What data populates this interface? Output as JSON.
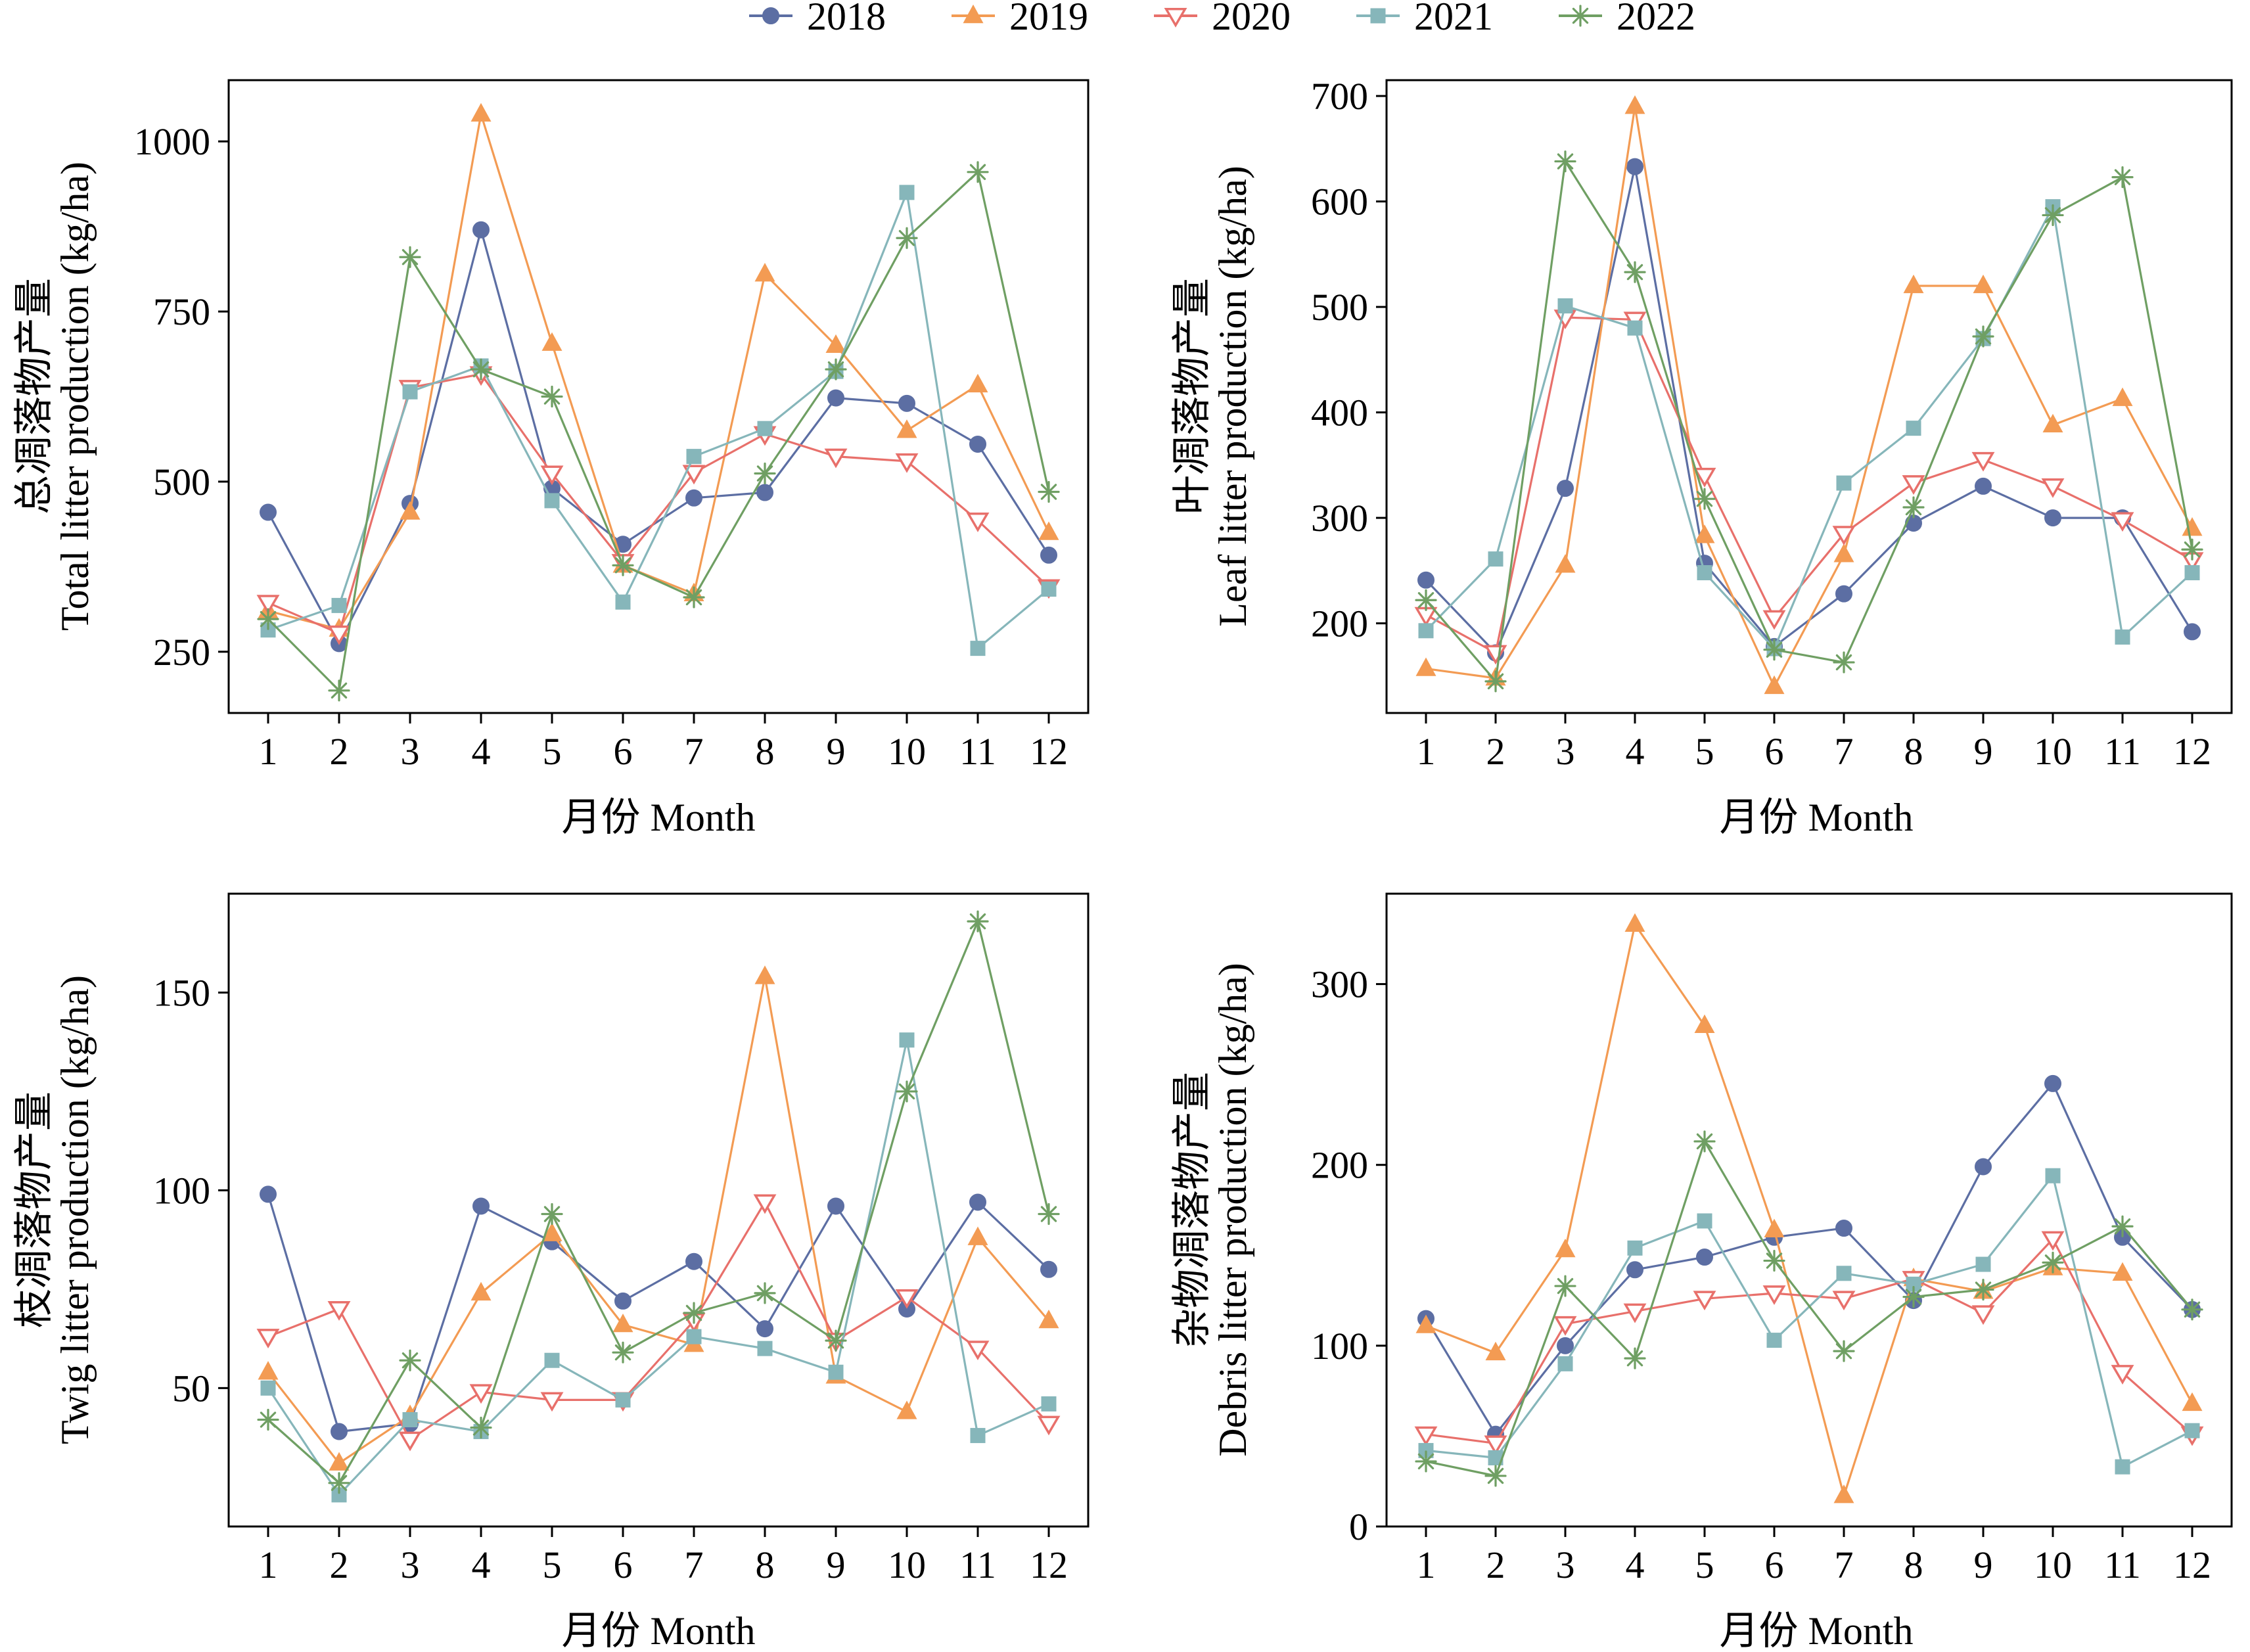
{
  "legend": [
    {
      "name": "2018",
      "color": "#5C6EA3",
      "marker": "circle"
    },
    {
      "name": "2019",
      "color": "#F39B53",
      "marker": "triangle-up"
    },
    {
      "name": "2020",
      "color": "#E8706B",
      "marker": "triangle-down-open"
    },
    {
      "name": "2021",
      "color": "#86B6BA",
      "marker": "square"
    },
    {
      "name": "2022",
      "color": "#6F9F63",
      "marker": "star"
    }
  ],
  "chart_data": [
    {
      "type": "line",
      "panel": "top-left",
      "xlabel": "月份 Month",
      "ylabel": [
        "总凋落物产量",
        "Total litter production (kg/ha)"
      ],
      "x": [
        1,
        2,
        3,
        4,
        5,
        6,
        7,
        8,
        9,
        10,
        11,
        12
      ],
      "xticks": [
        1,
        2,
        3,
        4,
        5,
        6,
        7,
        8,
        9,
        10,
        11,
        12
      ],
      "ylim": [
        160,
        1090
      ],
      "yticks": [
        250,
        500,
        750,
        1000
      ],
      "grid": false,
      "series": [
        {
          "name": "2018",
          "values": [
            455,
            262,
            468,
            870,
            490,
            408,
            476,
            484,
            623,
            615,
            555,
            392
          ]
        },
        {
          "name": "2019",
          "values": [
            310,
            283,
            455,
            1040,
            703,
            377,
            335,
            805,
            700,
            575,
            642,
            425
          ]
        },
        {
          "name": "2020",
          "values": [
            322,
            277,
            638,
            658,
            512,
            382,
            513,
            570,
            537,
            530,
            443,
            345
          ]
        },
        {
          "name": "2021",
          "values": [
            282,
            318,
            632,
            670,
            472,
            323,
            537,
            578,
            662,
            925,
            255,
            342
          ]
        },
        {
          "name": "2022",
          "values": [
            298,
            193,
            830,
            665,
            625,
            377,
            330,
            512,
            665,
            858,
            955,
            485
          ]
        }
      ]
    },
    {
      "type": "line",
      "panel": "top-right",
      "xlabel": "月份 Month",
      "ylabel": [
        "叶凋落物产量",
        "Leaf litter production (kg/ha)"
      ],
      "x": [
        1,
        2,
        3,
        4,
        5,
        6,
        7,
        8,
        9,
        10,
        11,
        12
      ],
      "xticks": [
        1,
        2,
        3,
        4,
        5,
        6,
        7,
        8,
        9,
        10,
        11,
        12
      ],
      "ylim": [
        115,
        715
      ],
      "yticks": [
        200,
        300,
        400,
        500,
        600,
        700
      ],
      "grid": false,
      "series": [
        {
          "name": "2018",
          "values": [
            241,
            172,
            328,
            633,
            257,
            178,
            228,
            295,
            330,
            300,
            300,
            192
          ]
        },
        {
          "name": "2019",
          "values": [
            157,
            148,
            255,
            690,
            283,
            140,
            265,
            520,
            520,
            388,
            413,
            290
          ]
        },
        {
          "name": "2020",
          "values": [
            208,
            172,
            490,
            488,
            340,
            205,
            285,
            333,
            355,
            330,
            298,
            260
          ]
        },
        {
          "name": "2021",
          "values": [
            193,
            261,
            501,
            480,
            248,
            176,
            333,
            385,
            470,
            595,
            187,
            248
          ]
        },
        {
          "name": "2022",
          "values": [
            222,
            145,
            638,
            533,
            318,
            175,
            163,
            310,
            472,
            587,
            623,
            270
          ]
        }
      ]
    },
    {
      "type": "line",
      "panel": "bottom-left",
      "xlabel": "月份 Month",
      "ylabel": [
        "枝凋落物产量",
        "Twig litter production (kg/ha)"
      ],
      "x": [
        1,
        2,
        3,
        4,
        5,
        6,
        7,
        8,
        9,
        10,
        11,
        12
      ],
      "xticks": [
        1,
        2,
        3,
        4,
        5,
        6,
        7,
        8,
        9,
        10,
        11,
        12
      ],
      "ylim": [
        15,
        175
      ],
      "yticks": [
        50,
        100,
        150
      ],
      "grid": false,
      "series": [
        {
          "name": "2018",
          "values": [
            99,
            39,
            41,
            96,
            87,
            72,
            82,
            65,
            96,
            70,
            97,
            80
          ]
        },
        {
          "name": "2019",
          "values": [
            54,
            31,
            43,
            74,
            89,
            66,
            61,
            154,
            53,
            44,
            88,
            67
          ]
        },
        {
          "name": "2020",
          "values": [
            63,
            70,
            37,
            49,
            47,
            47,
            67,
            97,
            62,
            73,
            60,
            41
          ]
        },
        {
          "name": "2021",
          "values": [
            50,
            23,
            42,
            39,
            57,
            47,
            63,
            60,
            54,
            138,
            38,
            46
          ]
        },
        {
          "name": "2022",
          "values": [
            42,
            26,
            57,
            40,
            94,
            59,
            69,
            74,
            62,
            125,
            168,
            94
          ]
        }
      ]
    },
    {
      "type": "line",
      "panel": "bottom-right",
      "xlabel": "月份 Month",
      "ylabel": [
        "杂物凋落物产量",
        "Debris litter production (kg/ha)"
      ],
      "x": [
        1,
        2,
        3,
        4,
        5,
        6,
        7,
        8,
        9,
        10,
        11,
        12
      ],
      "xticks": [
        1,
        2,
        3,
        4,
        5,
        6,
        7,
        8,
        9,
        10,
        11,
        12
      ],
      "ylim": [
        0,
        350
      ],
      "yticks": [
        0,
        100,
        200,
        300
      ],
      "grid": false,
      "series": [
        {
          "name": "2018",
          "values": [
            115,
            51,
            100,
            142,
            149,
            160,
            165,
            125,
            199,
            245,
            160,
            120
          ]
        },
        {
          "name": "2019",
          "values": [
            111,
            96,
            153,
            333,
            277,
            164,
            17,
            137,
            130,
            143,
            140,
            68
          ]
        },
        {
          "name": "2020",
          "values": [
            51,
            46,
            112,
            119,
            126,
            129,
            126,
            137,
            118,
            159,
            85,
            51
          ]
        },
        {
          "name": "2021",
          "values": [
            42,
            38,
            90,
            154,
            169,
            103,
            140,
            134,
            145,
            194,
            33,
            53
          ]
        },
        {
          "name": "2022",
          "values": [
            36,
            28,
            133,
            93,
            213,
            147,
            97,
            127,
            131,
            146,
            166,
            120
          ]
        }
      ]
    }
  ]
}
